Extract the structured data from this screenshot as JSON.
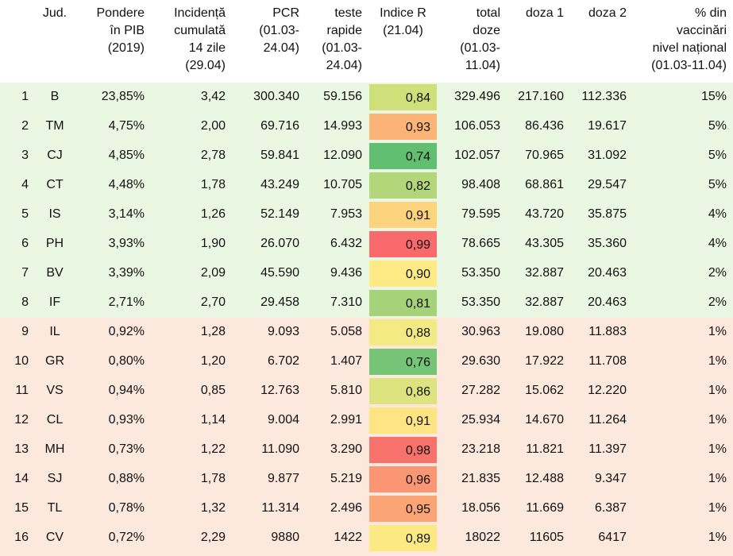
{
  "headers": {
    "jud": "Jud.",
    "pondere": "Pondere\nîn PIB\n(2019)",
    "incidenta": "Incidență\ncumulată\n14 zile\n(29.04)",
    "pcr": "PCR\n(01.03-\n24.04)",
    "teste": "teste\nrapide\n(01.03-\n24.04)",
    "indice": "Indice R\n(21.04)",
    "total": "total\ndoze\n(01.03-\n11.04)",
    "doza1": "doza 1",
    "doza2": "doza 2",
    "pct": "% din\nvaccinări\nnivel național\n(01.03-11.04)"
  },
  "colors": {
    "band_top": "#eaf7e3",
    "band_bottom": "#fde8dd"
  },
  "rows": [
    {
      "n": "1",
      "jud": "B",
      "pondere": "23,85%",
      "incidenta": "3,42",
      "pcr": "300.340",
      "teste": "59.156",
      "r": "0,84",
      "r_color": "#cfe07a",
      "total": "329.496",
      "doza1": "217.160",
      "doza2": "112.336",
      "pct": "15%"
    },
    {
      "n": "2",
      "jud": "TM",
      "pondere": "4,75%",
      "incidenta": "2,00",
      "pcr": "69.716",
      "teste": "14.993",
      "r": "0,93",
      "r_color": "#fbb475",
      "total": "106.053",
      "doza1": "86.436",
      "doza2": "19.617",
      "pct": "5%"
    },
    {
      "n": "3",
      "jud": "CJ",
      "pondere": "4,85%",
      "incidenta": "2,78",
      "pcr": "59.841",
      "teste": "12.090",
      "r": "0,74",
      "r_color": "#62bf71",
      "total": "102.057",
      "doza1": "70.965",
      "doza2": "31.092",
      "pct": "5%"
    },
    {
      "n": "4",
      "jud": "CT",
      "pondere": "4,48%",
      "incidenta": "1,78",
      "pcr": "43.249",
      "teste": "10.705",
      "r": "0,82",
      "r_color": "#b4d67a",
      "total": "98.408",
      "doza1": "68.861",
      "doza2": "29.547",
      "pct": "5%"
    },
    {
      "n": "5",
      "jud": "IS",
      "pondere": "3,14%",
      "incidenta": "1,26",
      "pcr": "52.149",
      "teste": "7.953",
      "r": "0,91",
      "r_color": "#fdd47e",
      "total": "79.595",
      "doza1": "43.720",
      "doza2": "35.875",
      "pct": "4%"
    },
    {
      "n": "6",
      "jud": "PH",
      "pondere": "3,93%",
      "incidenta": "1,90",
      "pcr": "26.070",
      "teste": "6.432",
      "r": "0,99",
      "r_color": "#f86a6b",
      "total": "78.665",
      "doza1": "43.305",
      "doza2": "35.360",
      "pct": "4%"
    },
    {
      "n": "7",
      "jud": "BV",
      "pondere": "3,39%",
      "incidenta": "2,09",
      "pcr": "45.590",
      "teste": "9.436",
      "r": "0,90",
      "r_color": "#feea84",
      "total": "53.350",
      "doza1": "32.887",
      "doza2": "20.463",
      "pct": "2%"
    },
    {
      "n": "8",
      "jud": "IF",
      "pondere": "2,71%",
      "incidenta": "2,70",
      "pcr": "29.458",
      "teste": "7.310",
      "r": "0,81",
      "r_color": "#a6d37a",
      "total": "53.350",
      "doza1": "32.887",
      "doza2": "20.463",
      "pct": "2%"
    },
    {
      "n": "9",
      "jud": "IL",
      "pondere": "0,92%",
      "incidenta": "1,28",
      "pcr": "9.093",
      "teste": "5.058",
      "r": "0,88",
      "r_color": "#f3ea84",
      "total": "30.963",
      "doza1": "19.080",
      "doza2": "11.883",
      "pct": "1%"
    },
    {
      "n": "10",
      "jud": "GR",
      "pondere": "0,80%",
      "incidenta": "1,20",
      "pcr": "6.702",
      "teste": "1.407",
      "r": "0,76",
      "r_color": "#76c476",
      "total": "29.630",
      "doza1": "17.922",
      "doza2": "11.708",
      "pct": "1%"
    },
    {
      "n": "11",
      "jud": "VS",
      "pondere": "0,94%",
      "incidenta": "0,85",
      "pcr": "12.763",
      "teste": "5.810",
      "r": "0,86",
      "r_color": "#dde47f",
      "total": "27.282",
      "doza1": "15.062",
      "doza2": "12.220",
      "pct": "1%"
    },
    {
      "n": "12",
      "jud": "CL",
      "pondere": "0,93%",
      "incidenta": "1,14",
      "pcr": "9.004",
      "teste": "2.991",
      "r": "0,91",
      "r_color": "#fee483",
      "total": "25.934",
      "doza1": "14.670",
      "doza2": "11.264",
      "pct": "1%"
    },
    {
      "n": "13",
      "jud": "MH",
      "pondere": "0,73%",
      "incidenta": "1,22",
      "pcr": "11.090",
      "teste": "3.290",
      "r": "0,98",
      "r_color": "#f8726c",
      "total": "23.218",
      "doza1": "11.821",
      "doza2": "11.397",
      "pct": "1%"
    },
    {
      "n": "14",
      "jud": "SJ",
      "pondere": "0,88%",
      "incidenta": "1,78",
      "pcr": "9.877",
      "teste": "5.219",
      "r": "0,96",
      "r_color": "#fa9673",
      "total": "21.835",
      "doza1": "12.488",
      "doza2": "9.347",
      "pct": "1%"
    },
    {
      "n": "15",
      "jud": "TL",
      "pondere": "0,78%",
      "incidenta": "1,32",
      "pcr": "11.314",
      "teste": "2.496",
      "r": "0,95",
      "r_color": "#fba476",
      "total": "18.056",
      "doza1": "11.669",
      "doza2": "6.387",
      "pct": "1%"
    },
    {
      "n": "16",
      "jud": "CV",
      "pondere": "0,72%",
      "incidenta": "2,29",
      "pcr": "9880",
      "teste": "1422",
      "r": "0,89",
      "r_color": "#fbe983",
      "total": "18022",
      "doza1": "11605",
      "doza2": "6417",
      "pct": "1%"
    }
  ]
}
